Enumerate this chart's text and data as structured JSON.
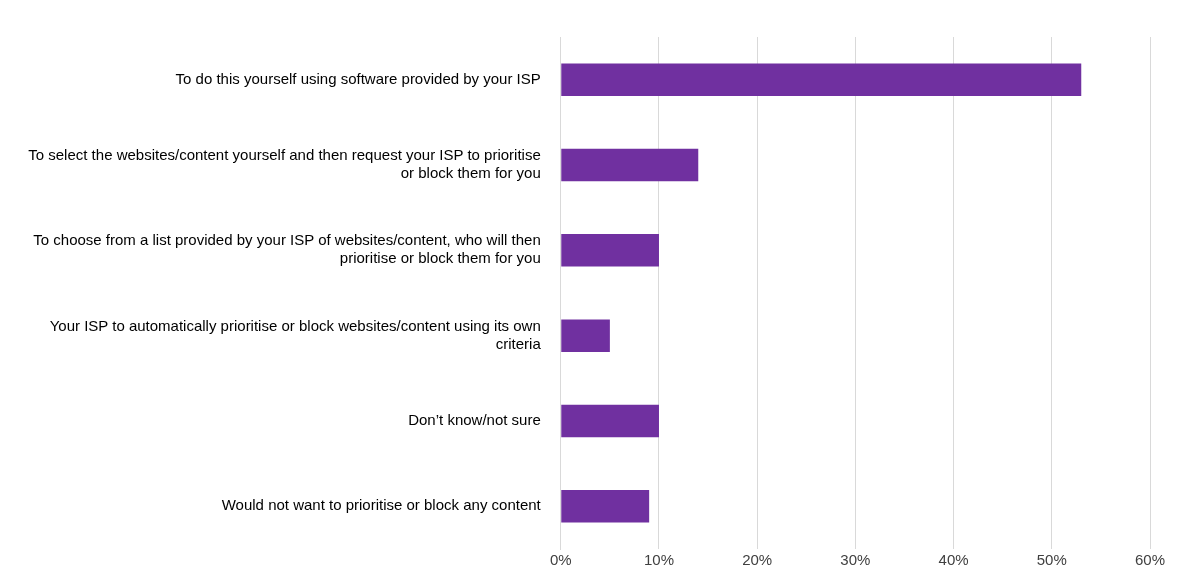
{
  "chart_data": {
    "type": "bar",
    "orientation": "horizontal",
    "categories": [
      "To do this yourself using software provided by your ISP",
      "To select the websites/content yourself and then request your ISP to prioritise or block them for you",
      "To choose from a list provided by your ISP of websites/content, who will then prioritise or block them for you",
      "Your ISP to automatically prioritise or block websites/content using its own criteria",
      "Don’t know/not sure",
      "Would not want to prioritise or block any content"
    ],
    "values": [
      53,
      14,
      10,
      5,
      10,
      9
    ],
    "color": "#7030a0",
    "xlim": [
      0,
      60
    ],
    "xticks": [
      {
        "value": 0,
        "label": "0%"
      },
      {
        "value": 10,
        "label": "10%"
      },
      {
        "value": 20,
        "label": "20%"
      },
      {
        "value": 30,
        "label": "30%"
      },
      {
        "value": 40,
        "label": "40%"
      },
      {
        "value": 50,
        "label": "50%"
      },
      {
        "value": 60,
        "label": "60%"
      }
    ],
    "grid": "x",
    "legend": false
  }
}
